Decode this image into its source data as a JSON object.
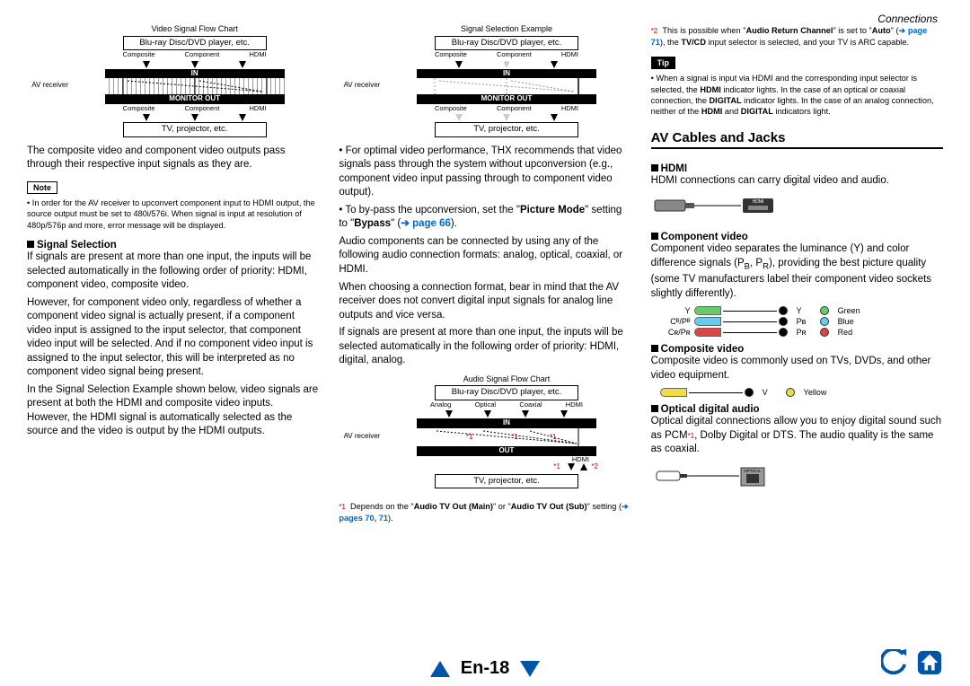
{
  "header": {
    "section": "Connections"
  },
  "footer": {
    "page": "En-18"
  },
  "col1": {
    "diagram1": {
      "title": "Video Signal Flow Chart",
      "top_box": "Blu-ray Disc/DVD player, etc.",
      "labels": [
        "Composite",
        "Component",
        "HDMI"
      ],
      "in": "IN",
      "out": "MONITOR OUT",
      "side": "AV receiver",
      "bottom_box": "TV, projector, etc."
    },
    "p1": "The composite video and component video outputs pass through their respective input signals as they are.",
    "note_label": "Note",
    "note_body": "In order for the AV receiver to upconvert component input to HDMI output, the source output must be set to 480i/576i. When signal is input at resolution of 480p/576p and more, error message will be displayed.",
    "h_signal": "Signal Selection",
    "p2": "If signals are present at more than one input, the inputs will be selected automatically in the following order of priority: HDMI, component video, composite video.",
    "p3": "However, for component video only, regardless of whether a component video signal is actually present, if a component video input is assigned to the input selector, that component video input will be selected. And if no component video input is assigned to the input selector, this will be interpreted as no component video signal being present.",
    "p4": "In the Signal Selection Example shown below, video signals are present at both the HDMI and composite video inputs. However, the HDMI signal is automatically selected as the source and the video is output by the HDMI outputs."
  },
  "col2": {
    "diagram2": {
      "title": "Signal Selection Example",
      "top_box": "Blu-ray Disc/DVD player, etc.",
      "labels": [
        "Composite",
        "Component",
        "HDMI"
      ],
      "in": "IN",
      "out": "MONITOR OUT",
      "side": "AV receiver",
      "bottom_box": "TV, projector, etc."
    },
    "p1": "For optimal video performance, THX recommends that video signals pass through the system without upconversion (e.g., component video input passing through to component video output).",
    "p2a": "To by-pass the upconversion, set the \"",
    "p2b": "Picture Mode",
    "p2c": "\" setting to \"",
    "p2d": "Bypass",
    "p2e": "\" (",
    "p2_link": "page 66",
    "p2f": ").",
    "p3": "Audio components can be connected by using any of the following audio connection formats: analog, optical, coaxial, or HDMI.",
    "p4": "When choosing a connection format, bear in mind that the AV receiver does not convert digital input signals for analog line outputs and vice versa.",
    "p5": "If signals are present at more than one input, the inputs will be selected automatically in the following order of priority: HDMI, digital, analog.",
    "diagram3": {
      "title": "Audio Signal Flow Chart",
      "top_box": "Blu-ray Disc/DVD player, etc.",
      "labels": [
        "Analog",
        "Optical",
        "Coaxial",
        "HDMI"
      ],
      "in": "IN",
      "out": "OUT",
      "side": "AV receiver",
      "bottom_box": "TV, projector, etc.",
      "hdmi": "HDMI",
      "m1": "*1",
      "m2": "*2"
    },
    "fn1a": "Depends on the \"",
    "fn1b": "Audio TV Out (Main)",
    "fn1c": "\" or \"",
    "fn1d": "Audio TV Out (Sub)",
    "fn1e": "\" setting (",
    "fn1_link": "pages 70, 71",
    "fn1f": ").",
    "fn1_mark": "*1"
  },
  "col3": {
    "fn2_mark": "*2",
    "fn2a": "This is possible when \"",
    "fn2b": "Audio Return Channel",
    "fn2c": "\" is set to \"",
    "fn2d": "Auto",
    "fn2e": "\" (",
    "fn2_link": "page 71",
    "fn2f": "), the ",
    "fn2g": "TV/CD",
    "fn2h": " input selector is selected, and your TV is ARC capable.",
    "tip_label": "Tip",
    "tip_a": "When a signal is input via HDMI and the corresponding input selector is selected, the ",
    "tip_b": "HDMI",
    "tip_c": " indicator lights. In the case of an optical or coaxial connection, the ",
    "tip_d": "DIGITAL",
    "tip_e": " indicator lights. In the case of an analog connection, neither of the ",
    "tip_f": "HDMI",
    "tip_g": " and ",
    "tip_h": "DIGITAL",
    "tip_i": " indicators light.",
    "h_av": "AV Cables and Jacks",
    "h_hdmi": "HDMI",
    "p_hdmi": "HDMI connections can carry digital video and audio.",
    "h_comp": "Component video",
    "p_comp_a": "Component video separates the luminance (Y) and color difference signals (P",
    "p_comp_b": "B",
    "p_comp_c": ", P",
    "p_comp_d": "R",
    "p_comp_e": "), providing the best picture quality (some TV manufacturers label their component video sockets slightly differently).",
    "comp_rows": [
      {
        "plug": "#66cc66",
        "label_l": "Y",
        "label_r": "Y",
        "name": "Green",
        "jack": "#66cc66"
      },
      {
        "plug": "#66ccee",
        "label_l": "Cᴮ/Pᴮ",
        "label_r": "Pʙ",
        "name": "Blue",
        "jack": "#66ccee"
      },
      {
        "plug": "#dd4444",
        "label_l": "Cʀ/Pʀ",
        "label_r": "Pʀ",
        "name": "Red",
        "jack": "#dd4444"
      }
    ],
    "h_cvid": "Composite video",
    "p_cvid": "Composite video is commonly used on TVs, DVDs, and other video equipment.",
    "cvid_row": {
      "plug": "#eedd44",
      "label_r": "V",
      "name": "Yellow",
      "jack": "#eedd44"
    },
    "h_opt": "Optical digital audio",
    "p_opt_a": "Optical digital connections allow you to enjoy digital sound such as PCM",
    "p_opt_mark": "*1",
    "p_opt_b": ", Dolby Digital or DTS. The audio quality is the same as coaxial.",
    "opt_label": "OPTICAL"
  }
}
